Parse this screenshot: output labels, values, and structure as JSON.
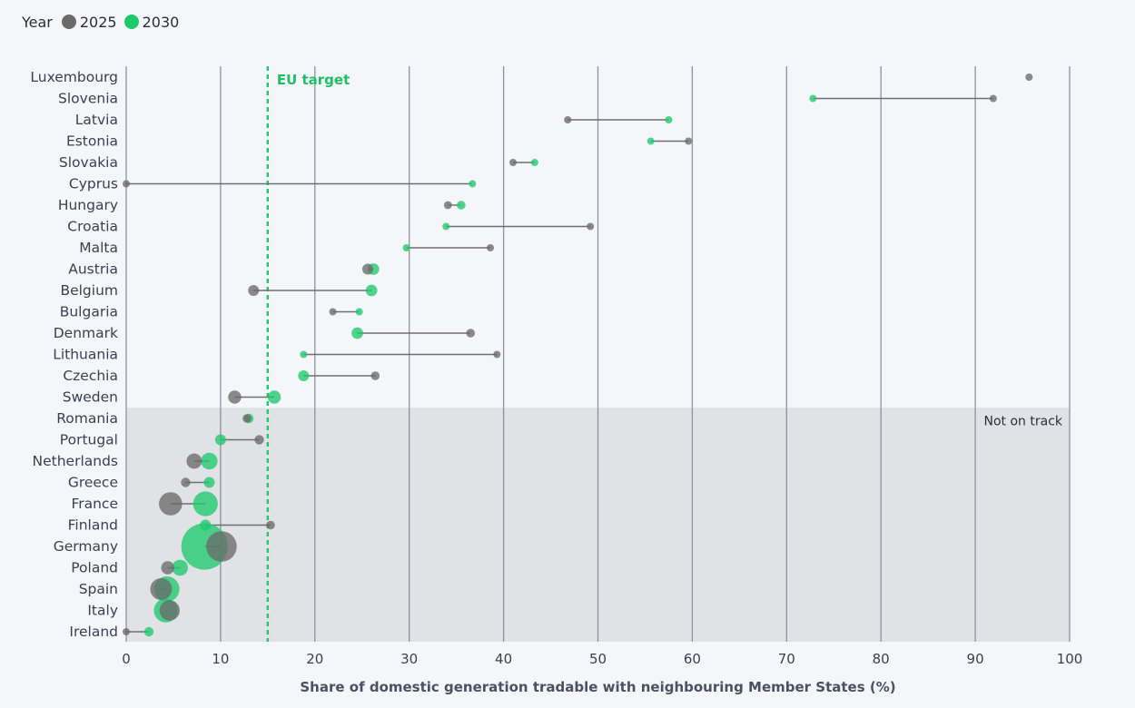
{
  "legend": {
    "title": "Year",
    "items": [
      {
        "label": "2025",
        "color": "#6a6a6a"
      },
      {
        "label": "2030",
        "color": "#1ec96c"
      }
    ]
  },
  "chart_data": {
    "type": "dumbbell",
    "xlabel": "Share of domestic generation tradable with neighbouring Member States (%)",
    "xlim": [
      0,
      100
    ],
    "x_ticks": [
      0,
      10,
      20,
      30,
      40,
      50,
      60,
      70,
      80,
      90,
      100
    ],
    "grid": true,
    "target": {
      "label": "EU target",
      "value": 15
    },
    "shaded_region": {
      "label": "Not on track",
      "from_category": "Romania",
      "to_category": "Ireland"
    },
    "series_colors": {
      "2025": "#6a6a6a",
      "2030": "#1ec96c"
    },
    "size_note": "bubble size relative (country scale)",
    "categories": [
      "Luxembourg",
      "Slovenia",
      "Latvia",
      "Estonia",
      "Slovakia",
      "Cyprus",
      "Hungary",
      "Croatia",
      "Malta",
      "Austria",
      "Belgium",
      "Bulgaria",
      "Denmark",
      "Lithuania",
      "Czechia",
      "Sweden",
      "Romania",
      "Portugal",
      "Netherlands",
      "Greece",
      "France",
      "Finland",
      "Germany",
      "Poland",
      "Spain",
      "Italy",
      "Ireland"
    ],
    "series": [
      {
        "name": "2025",
        "values": [
          95.7,
          91.9,
          46.8,
          59.6,
          41.0,
          0.0,
          34.1,
          49.2,
          38.6,
          25.6,
          13.5,
          21.9,
          36.5,
          39.3,
          26.4,
          11.5,
          12.8,
          14.1,
          7.2,
          6.3,
          4.7,
          15.3,
          10.1,
          4.4,
          3.7,
          4.6,
          0.0
        ],
        "sizes": [
          1,
          1,
          1,
          1,
          1,
          1,
          1.1,
          1,
          1,
          1.5,
          1.5,
          1,
          1.2,
          1,
          1.2,
          1.8,
          1.2,
          1.3,
          2.1,
          1.3,
          3.2,
          1.2,
          4.2,
          1.8,
          3.0,
          2.8,
          1
        ]
      },
      {
        "name": "2030",
        "values": [
          null,
          72.8,
          57.5,
          55.6,
          43.3,
          36.7,
          35.5,
          33.9,
          29.7,
          26.2,
          26.0,
          24.7,
          24.5,
          18.8,
          18.8,
          15.7,
          13.0,
          10.0,
          8.8,
          8.8,
          8.4,
          8.4,
          8.3,
          5.7,
          4.3,
          4.2,
          2.4
        ],
        "sizes": [
          1,
          1,
          1,
          1,
          1,
          1,
          1.2,
          1,
          1,
          1.6,
          1.6,
          1,
          1.6,
          1,
          1.5,
          1.8,
          1.3,
          1.5,
          2.3,
          1.5,
          3.4,
          1.5,
          6.4,
          2.2,
          3.5,
          3.3,
          1.3
        ]
      }
    ]
  }
}
